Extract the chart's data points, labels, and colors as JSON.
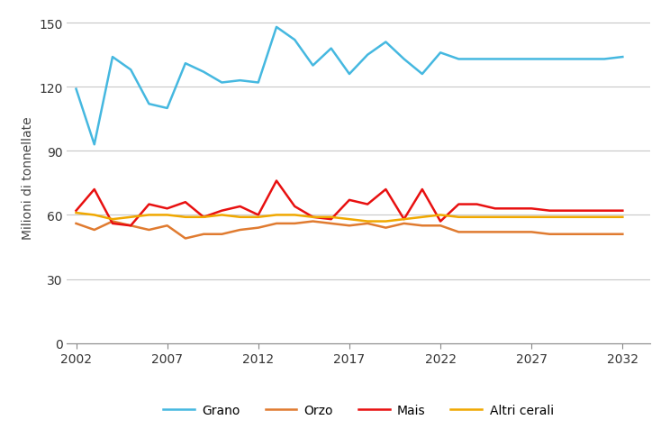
{
  "title": "",
  "ylabel": "Milioni di tonnellate",
  "xlim": [
    2001.5,
    2033.5
  ],
  "ylim": [
    0,
    155
  ],
  "yticks": [
    0,
    30,
    60,
    90,
    120,
    150
  ],
  "xticks": [
    2002,
    2007,
    2012,
    2017,
    2022,
    2027,
    2032
  ],
  "background_color": "#ffffff",
  "grid_color": "#c8c8c8",
  "series": {
    "Grano": {
      "color": "#45B8E0",
      "x": [
        2002,
        2003,
        2004,
        2005,
        2006,
        2007,
        2008,
        2009,
        2010,
        2011,
        2012,
        2013,
        2014,
        2015,
        2016,
        2017,
        2018,
        2019,
        2020,
        2021,
        2022,
        2023,
        2024,
        2025,
        2026,
        2027,
        2028,
        2029,
        2030,
        2031,
        2032
      ],
      "y": [
        119,
        93,
        134,
        128,
        112,
        110,
        131,
        127,
        122,
        123,
        122,
        148,
        142,
        130,
        138,
        126,
        135,
        141,
        133,
        126,
        136,
        133,
        133,
        133,
        133,
        133,
        133,
        133,
        133,
        133,
        134
      ]
    },
    "Orzo": {
      "color": "#E07B30",
      "x": [
        2002,
        2003,
        2004,
        2005,
        2006,
        2007,
        2008,
        2009,
        2010,
        2011,
        2012,
        2013,
        2014,
        2015,
        2016,
        2017,
        2018,
        2019,
        2020,
        2021,
        2022,
        2023,
        2024,
        2025,
        2026,
        2027,
        2028,
        2029,
        2030,
        2031,
        2032
      ],
      "y": [
        56,
        53,
        57,
        55,
        53,
        55,
        49,
        51,
        51,
        53,
        54,
        56,
        56,
        57,
        56,
        55,
        56,
        54,
        56,
        55,
        55,
        52,
        52,
        52,
        52,
        52,
        51,
        51,
        51,
        51,
        51
      ]
    },
    "Mais": {
      "color": "#E81010",
      "x": [
        2002,
        2003,
        2004,
        2005,
        2006,
        2007,
        2008,
        2009,
        2010,
        2011,
        2012,
        2013,
        2014,
        2015,
        2016,
        2017,
        2018,
        2019,
        2020,
        2021,
        2022,
        2023,
        2024,
        2025,
        2026,
        2027,
        2028,
        2029,
        2030,
        2031,
        2032
      ],
      "y": [
        62,
        72,
        56,
        55,
        65,
        63,
        66,
        59,
        62,
        64,
        60,
        76,
        64,
        59,
        58,
        67,
        65,
        72,
        58,
        72,
        57,
        65,
        65,
        63,
        63,
        63,
        62,
        62,
        62,
        62,
        62
      ]
    },
    "Altri cerali": {
      "color": "#F0A800",
      "x": [
        2002,
        2003,
        2004,
        2005,
        2006,
        2007,
        2008,
        2009,
        2010,
        2011,
        2012,
        2013,
        2014,
        2015,
        2016,
        2017,
        2018,
        2019,
        2020,
        2021,
        2022,
        2023,
        2024,
        2025,
        2026,
        2027,
        2028,
        2029,
        2030,
        2031,
        2032
      ],
      "y": [
        61,
        60,
        58,
        59,
        60,
        60,
        59,
        59,
        60,
        59,
        59,
        60,
        60,
        59,
        59,
        58,
        57,
        57,
        58,
        59,
        60,
        59,
        59,
        59,
        59,
        59,
        59,
        59,
        59,
        59,
        59
      ]
    }
  },
  "legend_order": [
    "Grano",
    "Orzo",
    "Mais",
    "Altri cerali"
  ],
  "linewidth": 1.8
}
